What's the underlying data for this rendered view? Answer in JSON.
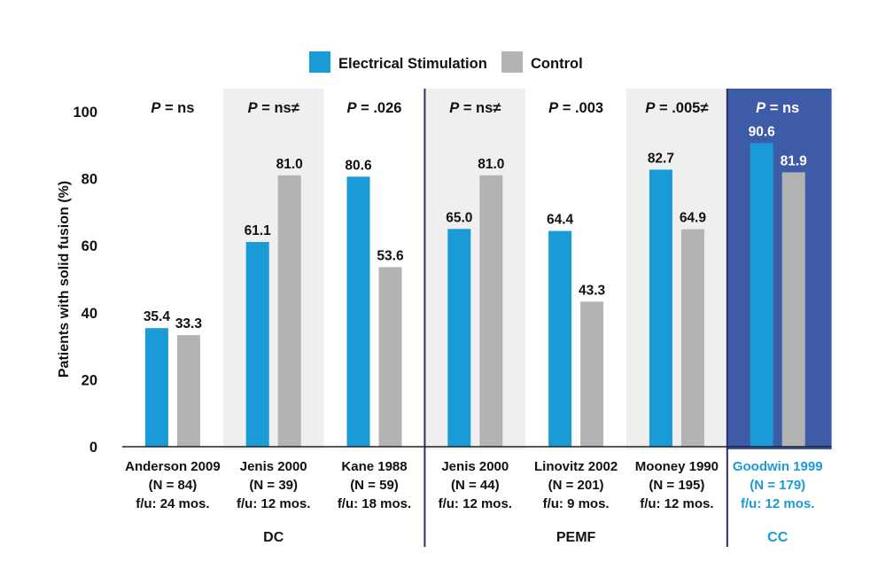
{
  "chart_data": {
    "type": "bar",
    "ylabel": "Patients with solid fusion (%)",
    "ylim": [
      0,
      100
    ],
    "yticks": [
      "0",
      "20",
      "40",
      "60",
      "80",
      "100"
    ],
    "legend": {
      "position": "top",
      "entries": [
        {
          "name": "Electrical Stimulation",
          "color": "#1a9ad6"
        },
        {
          "name": "Control",
          "color": "#b3b3b3"
        }
      ]
    },
    "series": [
      {
        "name": "Electrical Stimulation",
        "color": "#1a9ad6",
        "values": [
          35.4,
          61.1,
          80.6,
          65.0,
          64.4,
          82.7,
          90.6
        ]
      },
      {
        "name": "Control",
        "color": "#b3b3b3",
        "values": [
          33.3,
          81.0,
          53.6,
          81.0,
          43.3,
          64.9,
          81.9
        ]
      }
    ],
    "value_labels": {
      "Electrical Stimulation": [
        "35.4",
        "61.1",
        "80.6",
        "65.0",
        "64.4",
        "82.7",
        "90.6"
      ],
      "Control": [
        "33.3",
        "81.0",
        "53.6",
        "81.0",
        "43.3",
        "64.9",
        "81.9"
      ]
    },
    "categories": [
      {
        "lines": [
          "Anderson 2009",
          "(N = 84)",
          "f/u: 24 mos."
        ],
        "p_label": "= ns"
      },
      {
        "lines": [
          "Jenis 2000",
          "(N = 39)",
          "f/u: 12 mos."
        ],
        "p_label": "= ns≠"
      },
      {
        "lines": [
          "Kane 1988",
          "(N = 59)",
          "f/u: 18 mos."
        ],
        "p_label": "= .026"
      },
      {
        "lines": [
          "Jenis 2000",
          "(N = 44)",
          "f/u: 12 mos."
        ],
        "p_label": "= ns≠"
      },
      {
        "lines": [
          "Linovitz 2002",
          "(N = 201)",
          "f/u: 9 mos."
        ],
        "p_label": "= .003"
      },
      {
        "lines": [
          "Mooney 1990",
          "(N = 195)",
          "f/u: 12 mos."
        ],
        "p_label": "= .005≠"
      },
      {
        "lines": [
          "Goodwin 1999",
          "(N = 179)",
          "f/u: 12 mos."
        ],
        "p_label": "= ns",
        "highlight": true
      }
    ],
    "p_prefix": "P",
    "groups": [
      {
        "label": "DC",
        "categories": [
          0,
          1,
          2
        ]
      },
      {
        "label": "PEMF",
        "categories": [
          3,
          4,
          5
        ]
      },
      {
        "label": "CC",
        "categories": [
          6
        ]
      }
    ],
    "colors": {
      "shade": "#efefef",
      "highlight_bg": "#3e5ba8",
      "highlight_text": "#1a9ad6",
      "divider": "#2b2f6b",
      "text": "#111111"
    }
  }
}
